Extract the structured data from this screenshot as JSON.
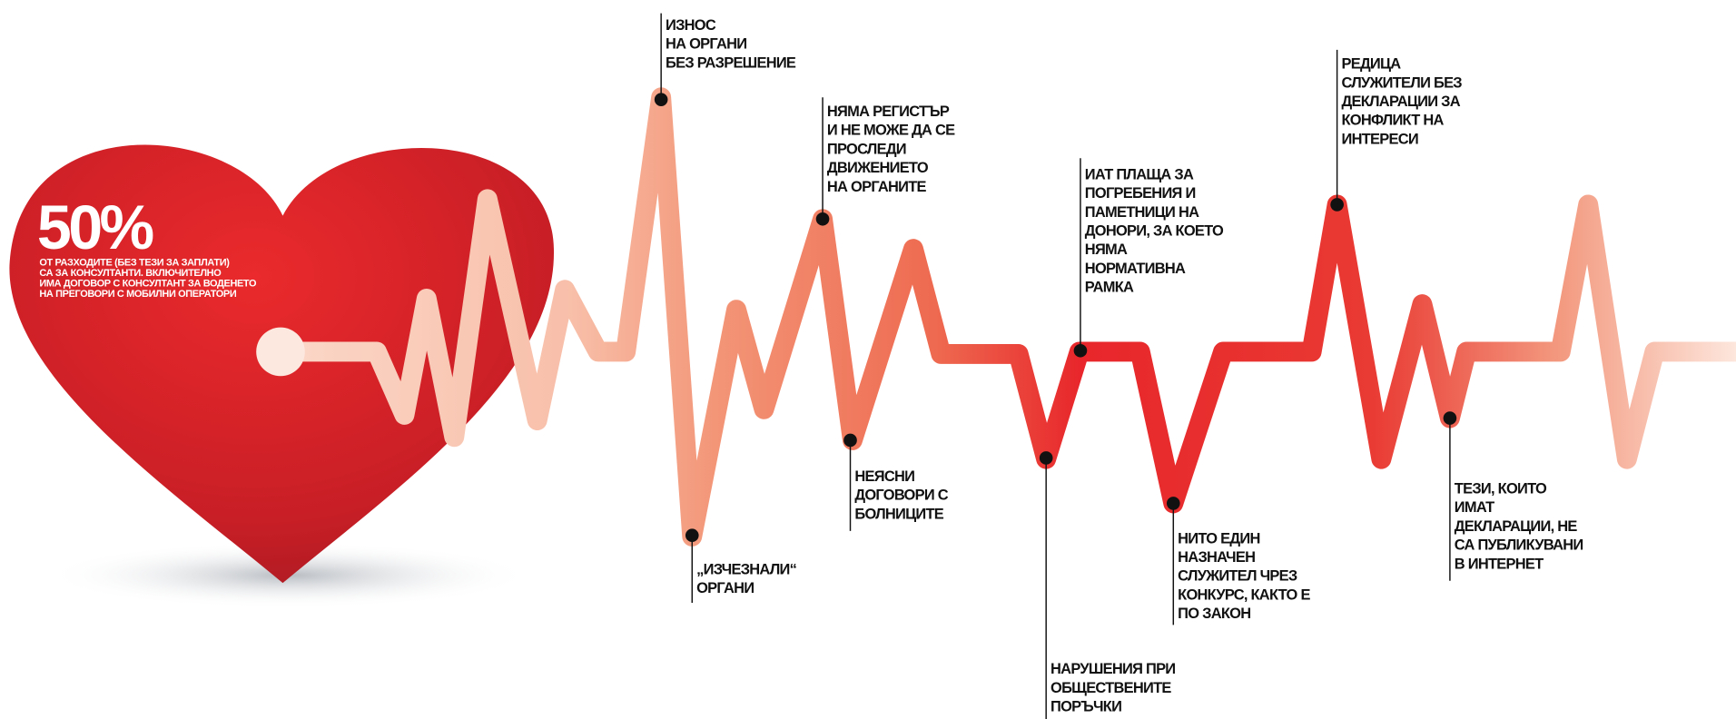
{
  "headline": {
    "figure": "50%",
    "lines": [
      "ОТ РАЗХОДИТЕ (БЕЗ ТЕЗИ ЗА ЗАПЛАТИ)",
      "СА ЗА КОНСУЛТАНТИ. ВКЛЮЧИТЕЛНО",
      "ИМА ДОГОВОР С КОНСУЛТАНТ ЗА ВОДЕНЕТО",
      "НА ПРЕГОВОРИ С МОБИЛНИ ОПЕРАТОРИ"
    ]
  },
  "annotations": [
    {
      "lines": [
        "ИЗНОС",
        "НА ОРГАНИ",
        "БЕЗ РАЗРЕШЕНИЕ"
      ]
    },
    {
      "lines": [
        "НЯМА РЕГИСТЪР",
        "И НЕ МОЖЕ ДА СЕ",
        "ПРОСЛЕДИ",
        "ДВИЖЕНИЕТО",
        "НА ОРГАНИТЕ"
      ]
    },
    {
      "lines": [
        "ИАТ ПЛАЩА ЗА",
        "ПОГРЕБЕНИЯ И",
        "ПАМЕТНИЦИ НА",
        "ДОНОРИ, ЗА КОЕТО",
        "НЯМА",
        "НОРМАТИВНА",
        "РАМКА"
      ]
    },
    {
      "lines": [
        "РЕДИЦА",
        "СЛУЖИТЕЛИ БЕЗ",
        "ДЕКЛАРАЦИИ ЗА",
        "КОНФЛИКТ НА",
        "ИНТЕРЕСИ"
      ]
    },
    {
      "lines": [
        "„ИЗЧЕЗНАЛИ“",
        "ОРГАНИ"
      ]
    },
    {
      "lines": [
        "НЕЯСНИ",
        "ДОГОВОРИ С",
        "БОЛНИЦИТЕ"
      ]
    },
    {
      "lines": [
        "НАРУШЕНИЯ ПРИ",
        "ОБЩЕСТВЕНИТЕ",
        "ПОРЪЧКИ"
      ]
    },
    {
      "lines": [
        "НИТО ЕДИН",
        "НАЗНАЧЕН",
        "СЛУЖИТЕЛ ЧРЕЗ",
        "КОНКУРС, КАКТО Е",
        "ПО ЗАКОН"
      ]
    },
    {
      "lines": [
        "ТЕЗИ, КОИТО",
        "ИМАТ",
        "ДЕКЛАРАЦИИ, НЕ",
        "СА ПУБЛИКУВАНИ",
        "В ИНТЕРНЕТ"
      ]
    }
  ]
}
